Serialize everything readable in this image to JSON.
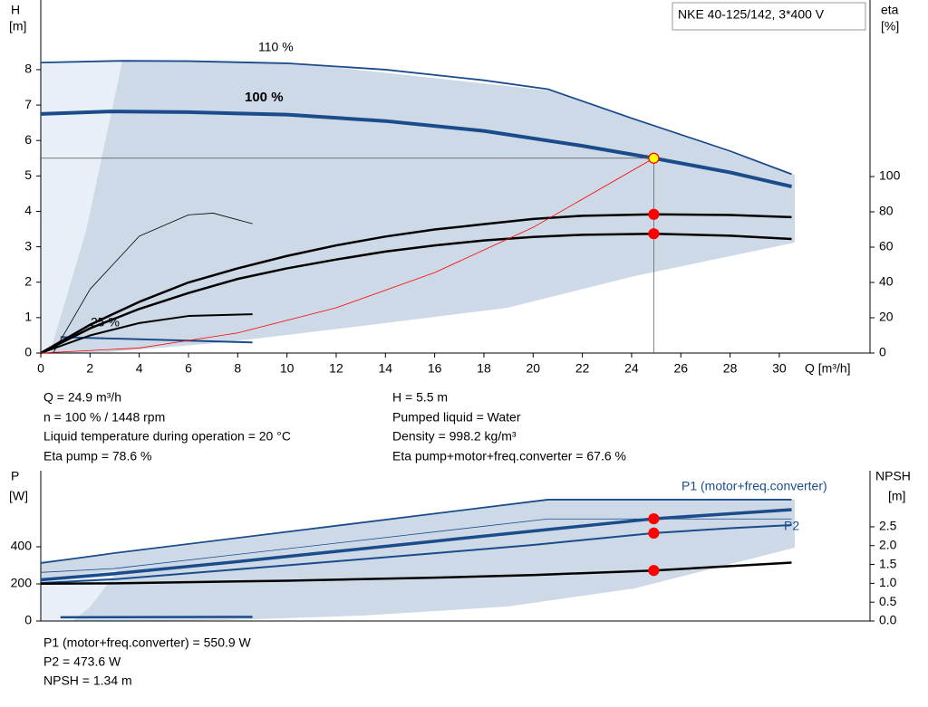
{
  "model_label": "NKE 40-125/142, 3*400 V",
  "info_top": {
    "left": [
      "Q = 24.9 m³/h",
      "n = 100 % / 1448 rpm",
      "Liquid temperature during operation = 20 °C",
      "Eta pump = 78.6 %"
    ],
    "right": [
      "H = 5.5 m",
      "Pumped liquid = Water",
      "Density = 998.2 kg/m³",
      "Eta pump+motor+freq.converter = 67.6 %"
    ]
  },
  "info_bottom": [
    "P1 (motor+freq.converter) = 550.9 W",
    "P2 = 473.6 W",
    "NPSH = 1.34 m"
  ],
  "chart_data": [
    {
      "type": "line",
      "ylabel": "H",
      "yunit": "[m]",
      "y2label": "eta",
      "y2unit": "[%]",
      "xlabel": "Q [m³/h]",
      "xlim": [
        0,
        33.5
      ],
      "xticks": [
        0,
        2,
        4,
        6,
        8,
        10,
        12,
        14,
        16,
        18,
        20,
        22,
        24,
        26,
        28,
        30
      ],
      "ylim": [
        0,
        9.89
      ],
      "yticks": [
        0,
        1,
        2,
        3,
        4,
        5,
        6,
        7,
        8
      ],
      "y2lim": [
        0,
        198.5
      ],
      "y2ticks": [
        0,
        20,
        40,
        60,
        80,
        100
      ],
      "series": [
        {
          "name": "110 %",
          "color": "#1a4c8b",
          "width": 1.8,
          "x": [
            0,
            3.3,
            6,
            10,
            14,
            18,
            20.6,
            24,
            28,
            30.5
          ],
          "values": [
            8.2,
            8.25,
            8.24,
            8.18,
            8.0,
            7.7,
            7.45,
            6.63,
            5.7,
            5.05
          ]
        },
        {
          "name": "100 %",
          "color": "#1a4c8b",
          "width": 4,
          "x": [
            0,
            2.8,
            6,
            10,
            14,
            18,
            22,
            24.9,
            28,
            30.5
          ],
          "values": [
            6.75,
            6.82,
            6.8,
            6.73,
            6.55,
            6.27,
            5.85,
            5.5,
            5.1,
            4.7
          ]
        },
        {
          "name": "25 %",
          "color": "#1a4c8b",
          "width": 2,
          "x": [
            0.8,
            8.6
          ],
          "values": [
            0.45,
            0.3
          ]
        },
        {
          "color": "#000000",
          "width": 2.5,
          "axis": "y2",
          "x": [
            0,
            2,
            4,
            6,
            8,
            10,
            12,
            14,
            16,
            18,
            20,
            22,
            24.9,
            28,
            30.5
          ],
          "values": [
            0,
            16,
            29,
            40,
            48,
            55,
            61,
            66,
            70,
            73,
            76,
            77.8,
            78.6,
            78.2,
            77
          ]
        },
        {
          "color": "#000000",
          "width": 2.5,
          "axis": "y2",
          "x": [
            0,
            2,
            4,
            6,
            8,
            10,
            12,
            14,
            16,
            18,
            20,
            22,
            24.9,
            28,
            30.5
          ],
          "values": [
            0,
            14,
            25,
            34,
            42,
            48,
            53,
            57.5,
            61,
            63.8,
            65.8,
            67,
            67.6,
            66.5,
            64.6
          ]
        },
        {
          "color": "#000000",
          "width": 2,
          "axis": "y2",
          "x": [
            0,
            2,
            4,
            6,
            8.6
          ],
          "values": [
            0,
            10,
            17,
            21,
            22
          ]
        },
        {
          "color": "#000000",
          "width": 0.8,
          "x": [
            0.5,
            2,
            4,
            6,
            7,
            8.6
          ],
          "values": [
            0,
            1.8,
            3.3,
            3.9,
            3.95,
            3.65
          ]
        },
        {
          "color": "#ff0000",
          "width": 0.8,
          "x": [
            0,
            4,
            8,
            12,
            16,
            20,
            24.9
          ],
          "values": [
            0,
            0.142,
            0.568,
            1.277,
            2.271,
            3.548,
            5.5
          ]
        }
      ],
      "points": [
        {
          "x": 24.9,
          "y": 5.5,
          "color": "#ffff00"
        },
        {
          "x": 24.9,
          "y": 78.6,
          "axis": "y2",
          "color": "#ff0000"
        },
        {
          "x": 24.9,
          "y": 67.6,
          "axis": "y2",
          "color": "#ff0000"
        }
      ]
    },
    {
      "type": "line",
      "ylabel": "P",
      "yunit": "[W]",
      "y2label": "NPSH",
      "y2unit": "[m]",
      "xlim": [
        0,
        33.5
      ],
      "ylim": [
        0,
        800
      ],
      "yticks": [
        0,
        200,
        400
      ],
      "y2lim": [
        0,
        3.94
      ],
      "y2ticks": [
        {
          "value": 0,
          "label": "0.0"
        },
        0.5,
        {
          "value": 1,
          "label": "1.0"
        },
        1.5,
        {
          "value": 2,
          "label": "2.0"
        },
        2.5
      ],
      "series": [
        {
          "color": "#1a4c8b",
          "width": 1.8,
          "x": [
            0,
            3,
            20.6,
            30.5
          ],
          "values": [
            312,
            366,
            654,
            654
          ]
        },
        {
          "name": "P1 (motor+freq.converter)",
          "color": "#1a4c8b",
          "width": 3.5,
          "x": [
            0,
            3,
            8,
            12,
            16,
            20,
            24.9,
            30.5
          ],
          "values": [
            222,
            255,
            320,
            375,
            430,
            485,
            550.9,
            600
          ]
        },
        {
          "name": "P2",
          "color": "#1a4c8b",
          "width": 2,
          "x": [
            0,
            3,
            10,
            16,
            20,
            24.9,
            28,
            30.5
          ],
          "values": [
            205,
            225,
            300,
            365,
            410,
            473.6,
            500,
            517
          ]
        },
        {
          "color": "#1a4c8b",
          "width": 0.8,
          "x": [
            0,
            3,
            20.6,
            30.5
          ],
          "values": [
            262,
            283,
            550,
            550
          ]
        },
        {
          "color": "#000000",
          "width": 2.5,
          "axis": "y2",
          "x": [
            0,
            3,
            10,
            16,
            20,
            24.9,
            30.5
          ],
          "values": [
            0.99,
            1.0,
            1.07,
            1.15,
            1.22,
            1.34,
            1.55
          ]
        },
        {
          "color": "#1a4c8b",
          "width": 2.5,
          "x": [
            0.8,
            8.6
          ],
          "values": [
            20,
            22
          ]
        }
      ],
      "points": [
        {
          "x": 24.9,
          "y": 550.9,
          "color": "#ff0000"
        },
        {
          "x": 24.9,
          "y": 473.6,
          "color": "#ff0000"
        },
        {
          "x": 24.9,
          "y": 1.34,
          "axis": "y2",
          "color": "#ff0000"
        }
      ]
    }
  ]
}
